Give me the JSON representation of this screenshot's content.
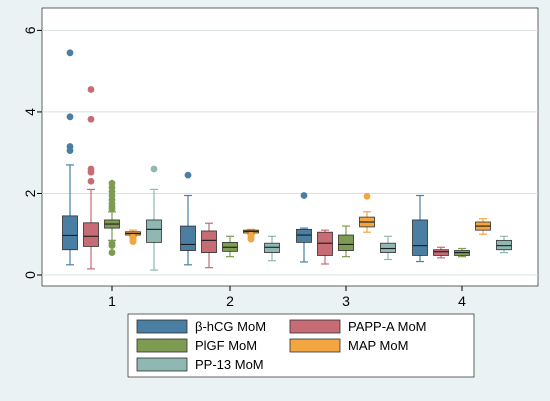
{
  "chart_data": {
    "type": "boxplot",
    "title": "",
    "xlabel": "",
    "ylabel": "",
    "categories": [
      "1",
      "2",
      "3",
      "4"
    ],
    "ylim": [
      0,
      6.5
    ],
    "yticks": [
      0,
      2,
      4,
      6
    ],
    "grid": "horizontal",
    "legend_position": "bottom",
    "series": [
      {
        "name": "β-hCG MoM",
        "color": "#4a7fa3",
        "boxes": [
          {
            "min": 0.25,
            "q1": 0.62,
            "median": 0.97,
            "q3": 1.45,
            "max": 2.7,
            "outliers": [
              5.45,
              3.88,
              3.15,
              3.05
            ]
          },
          {
            "min": 0.25,
            "q1": 0.6,
            "median": 0.75,
            "q3": 1.2,
            "max": 1.95,
            "outliers": [
              2.45
            ]
          },
          {
            "min": 0.32,
            "q1": 0.8,
            "median": 0.98,
            "q3": 1.12,
            "max": 1.15,
            "outliers": [
              1.95
            ]
          },
          {
            "min": 0.33,
            "q1": 0.48,
            "median": 0.72,
            "q3": 1.35,
            "max": 1.95,
            "outliers": []
          }
        ]
      },
      {
        "name": "PAPP-A MoM",
        "color": "#c76b75",
        "boxes": [
          {
            "min": 0.15,
            "q1": 0.7,
            "median": 0.95,
            "q3": 1.28,
            "max": 2.1,
            "outliers": [
              4.55,
              3.82,
              2.6,
              2.52,
              2.3
            ]
          },
          {
            "min": 0.18,
            "q1": 0.55,
            "median": 0.85,
            "q3": 1.08,
            "max": 1.27,
            "outliers": []
          },
          {
            "min": 0.27,
            "q1": 0.48,
            "median": 0.78,
            "q3": 1.05,
            "max": 1.1,
            "outliers": []
          },
          {
            "min": 0.42,
            "q1": 0.48,
            "median": 0.57,
            "q3": 0.62,
            "max": 0.68,
            "outliers": []
          }
        ]
      },
      {
        "name": "PlGF MoM",
        "color": "#7e9b53",
        "boxes": [
          {
            "min": 0.85,
            "q1": 1.15,
            "median": 1.25,
            "q3": 1.35,
            "max": 1.55,
            "outliers": [
              2.25,
              2.15,
              2.05,
              1.95,
              1.85,
              1.75,
              1.68,
              1.62,
              0.78,
              0.72,
              0.55
            ]
          },
          {
            "min": 0.45,
            "q1": 0.58,
            "median": 0.68,
            "q3": 0.8,
            "max": 0.95,
            "outliers": []
          },
          {
            "min": 0.45,
            "q1": 0.6,
            "median": 0.75,
            "q3": 0.98,
            "max": 1.2,
            "outliers": []
          },
          {
            "min": 0.45,
            "q1": 0.48,
            "median": 0.55,
            "q3": 0.6,
            "max": 0.65,
            "outliers": []
          }
        ]
      },
      {
        "name": "MAP MoM",
        "color": "#f2a541",
        "boxes": [
          {
            "min": 0.95,
            "q1": 0.98,
            "median": 1.02,
            "q3": 1.06,
            "max": 1.1,
            "outliers": [
              0.92,
              0.9,
              0.87,
              0.84,
              0.82
            ]
          },
          {
            "min": 1.0,
            "q1": 1.03,
            "median": 1.07,
            "q3": 1.1,
            "max": 1.12,
            "outliers": [
              0.97,
              0.92,
              0.88
            ]
          },
          {
            "min": 1.05,
            "q1": 1.18,
            "median": 1.3,
            "q3": 1.42,
            "max": 1.55,
            "outliers": [
              1.93
            ]
          },
          {
            "min": 1.0,
            "q1": 1.1,
            "median": 1.2,
            "q3": 1.3,
            "max": 1.38,
            "outliers": []
          }
        ]
      },
      {
        "name": "PP-13 MoM",
        "color": "#8fb8b3",
        "boxes": [
          {
            "min": 0.12,
            "q1": 0.8,
            "median": 1.12,
            "q3": 1.35,
            "max": 2.1,
            "outliers": [
              2.6
            ]
          },
          {
            "min": 0.35,
            "q1": 0.55,
            "median": 0.68,
            "q3": 0.78,
            "max": 0.95,
            "outliers": []
          },
          {
            "min": 0.38,
            "q1": 0.55,
            "median": 0.65,
            "q3": 0.78,
            "max": 0.95,
            "outliers": []
          },
          {
            "min": 0.55,
            "q1": 0.62,
            "median": 0.72,
            "q3": 0.85,
            "max": 0.95,
            "outliers": []
          }
        ]
      }
    ]
  }
}
